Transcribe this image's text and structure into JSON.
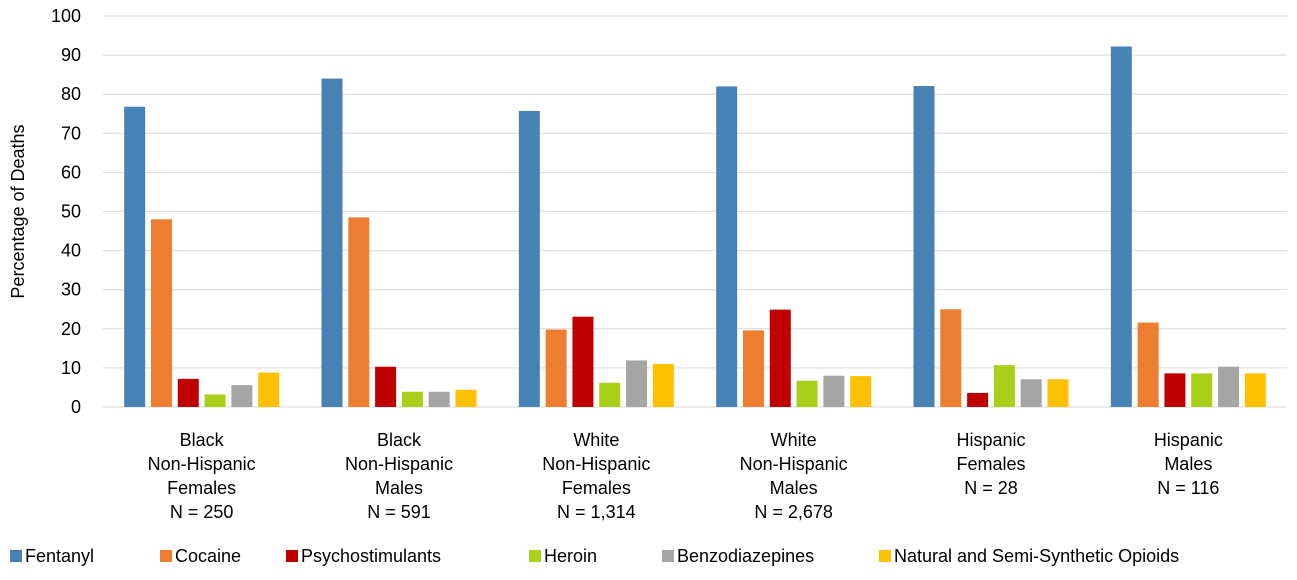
{
  "chart_data": {
    "type": "bar",
    "title": "",
    "xlabel": "",
    "ylabel": "Percentage of Deaths",
    "ylim": [
      0,
      100
    ],
    "yticks": [
      0,
      10,
      20,
      30,
      40,
      50,
      60,
      70,
      80,
      90,
      100
    ],
    "grid": true,
    "legend_position": "bottom",
    "categories": [
      [
        "Black",
        "Non-Hispanic",
        "Females",
        "N = 250"
      ],
      [
        "Black",
        "Non-Hispanic",
        "Males",
        "N = 591"
      ],
      [
        "White",
        "Non-Hispanic",
        "Females",
        "N = 1,314"
      ],
      [
        "White",
        "Non-Hispanic",
        "Males",
        "N = 2,678"
      ],
      [
        "Hispanic",
        "Females",
        "N = 28"
      ],
      [
        "Hispanic",
        "Males",
        "N = 116"
      ]
    ],
    "series": [
      {
        "name": "Fentanyl",
        "color": "#4682b4",
        "values": [
          76.8,
          84.0,
          75.7,
          82.0,
          82.1,
          92.2
        ]
      },
      {
        "name": "Cocaine",
        "color": "#ed7d31",
        "values": [
          48.0,
          48.5,
          19.8,
          19.6,
          25.0,
          21.6
        ]
      },
      {
        "name": "Psychostimulants",
        "color": "#c00000",
        "values": [
          7.2,
          10.3,
          23.1,
          24.9,
          3.6,
          8.6
        ]
      },
      {
        "name": "Heroin",
        "color": "#a9d018",
        "values": [
          3.2,
          3.9,
          6.2,
          6.7,
          10.7,
          8.6
        ]
      },
      {
        "name": "Benzodiazepines",
        "color": "#a5a5a5",
        "values": [
          5.6,
          3.9,
          11.9,
          8.0,
          7.1,
          10.3
        ]
      },
      {
        "name": "Natural and Semi-Synthetic Opioids",
        "color": "#ffc000",
        "values": [
          8.8,
          4.4,
          11.0,
          7.9,
          7.1,
          8.6
        ]
      }
    ]
  }
}
